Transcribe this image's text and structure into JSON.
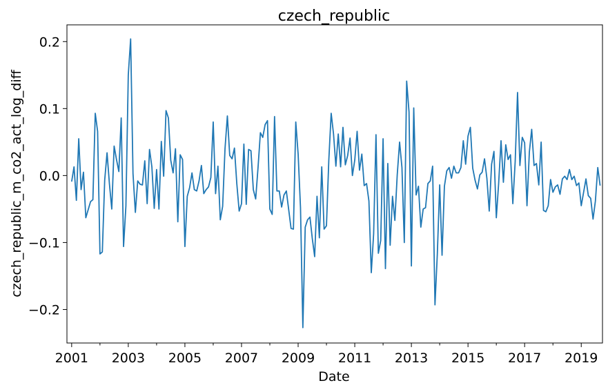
{
  "chart_data": {
    "type": "line",
    "title": "czech_republic",
    "xlabel": "Date",
    "ylabel": "czech_republic_m_co2_act_log_diff",
    "x_start": "2001-01",
    "x_end": "2019-10",
    "x_tick_labels": [
      "2001",
      "2003",
      "2005",
      "2007",
      "2009",
      "2011",
      "2013",
      "2015",
      "2017",
      "2019"
    ],
    "x_range": [
      "2000-11",
      "2019-10"
    ],
    "y_tick_labels": [
      "−0.2",
      "−0.1",
      "0.0",
      "0.1",
      "0.2"
    ],
    "y_ticks": [
      -0.2,
      -0.1,
      0.0,
      0.1,
      0.2
    ],
    "ylim": [
      -0.25,
      0.225
    ],
    "grid": false,
    "legend": "none",
    "line_color": "#1f77b4",
    "series": [
      {
        "values": [
          -0.009,
          0.013,
          -0.037,
          0.055,
          -0.021,
          0.005,
          -0.063,
          -0.051,
          -0.039,
          -0.036,
          0.093,
          0.066,
          -0.117,
          -0.114,
          -0.007,
          0.034,
          -0.012,
          -0.05,
          0.044,
          0.024,
          0.006,
          0.086,
          -0.106,
          -0.045,
          0.15,
          0.204,
          0.003,
          -0.055,
          -0.008,
          -0.013,
          -0.014,
          0.022,
          -0.042,
          0.039,
          0.013,
          -0.049,
          0.009,
          -0.05,
          0.051,
          -0.001,
          0.097,
          0.086,
          0.023,
          0.004,
          0.04,
          -0.069,
          0.031,
          0.024,
          -0.106,
          -0.031,
          -0.018,
          0.004,
          -0.021,
          -0.023,
          -0.008,
          0.015,
          -0.027,
          -0.021,
          -0.017,
          -0.003,
          0.08,
          -0.027,
          0.014,
          -0.066,
          -0.046,
          0.04,
          0.089,
          0.03,
          0.025,
          0.041,
          -0.012,
          -0.053,
          -0.042,
          0.047,
          -0.043,
          0.039,
          0.037,
          -0.021,
          -0.035,
          0.012,
          0.064,
          0.057,
          0.076,
          0.082,
          -0.05,
          -0.058,
          0.088,
          -0.023,
          -0.023,
          -0.047,
          -0.029,
          -0.023,
          -0.051,
          -0.079,
          -0.08,
          0.08,
          0.032,
          -0.048,
          -0.227,
          -0.077,
          -0.066,
          -0.062,
          -0.094,
          -0.121,
          -0.031,
          -0.093,
          0.013,
          -0.08,
          -0.075,
          0.023,
          0.093,
          0.062,
          0.014,
          0.062,
          0.013,
          0.072,
          0.016,
          0.03,
          0.056,
          0.0,
          0.023,
          0.066,
          0.008,
          0.032,
          -0.015,
          -0.012,
          -0.038,
          -0.145,
          -0.087,
          0.061,
          -0.116,
          -0.097,
          0.055,
          -0.139,
          0.018,
          -0.104,
          -0.031,
          -0.067,
          0.001,
          0.05,
          0.012,
          -0.1,
          0.141,
          0.095,
          -0.135,
          0.101,
          -0.029,
          -0.016,
          -0.077,
          -0.05,
          -0.048,
          -0.012,
          -0.008,
          0.014,
          -0.193,
          -0.117,
          -0.014,
          -0.119,
          -0.016,
          0.007,
          0.012,
          -0.004,
          0.014,
          0.004,
          0.004,
          0.012,
          0.052,
          0.017,
          0.059,
          0.072,
          0.011,
          -0.007,
          -0.02,
          0.001,
          0.005,
          0.025,
          -0.004,
          -0.053,
          0.017,
          0.036,
          -0.063,
          -0.011,
          0.052,
          -0.01,
          0.046,
          0.024,
          0.031,
          -0.042,
          0.021,
          0.124,
          0.015,
          0.057,
          0.049,
          -0.045,
          0.035,
          0.069,
          0.015,
          0.018,
          -0.014,
          0.05,
          -0.052,
          -0.054,
          -0.045,
          -0.006,
          -0.025,
          -0.017,
          -0.014,
          -0.028,
          -0.005,
          -0.001,
          -0.006,
          0.009,
          -0.006,
          -0.001,
          -0.015,
          -0.011,
          -0.045,
          -0.025,
          -0.005,
          -0.03,
          -0.034,
          -0.065,
          -0.038,
          0.012,
          -0.015
        ]
      }
    ]
  }
}
